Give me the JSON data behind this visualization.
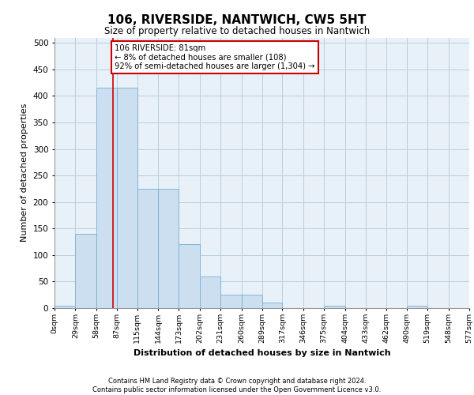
{
  "title": "106, RIVERSIDE, NANTWICH, CW5 5HT",
  "subtitle": "Size of property relative to detached houses in Nantwich",
  "xlabel": "Distribution of detached houses by size in Nantwich",
  "ylabel": "Number of detached properties",
  "footer_line1": "Contains HM Land Registry data © Crown copyright and database right 2024.",
  "footer_line2": "Contains public sector information licensed under the Open Government Licence v3.0.",
  "bar_color": "#ccdff0",
  "bar_edge_color": "#7bafd4",
  "bg_color": "#e8f0f8",
  "grid_color": "#b8cfe0",
  "annotation_text": "106 RIVERSIDE: 81sqm\n← 8% of detached houses are smaller (108)\n92% of semi-detached houses are larger (1,304) →",
  "annotation_box_color": "#ffffff",
  "annotation_edge_color": "#cc0000",
  "vline_color": "#cc0000",
  "vline_x": 81,
  "bin_edges": [
    0,
    29,
    58,
    87,
    115,
    144,
    173,
    202,
    231,
    260,
    289,
    317,
    346,
    375,
    404,
    433,
    462,
    490,
    519,
    548,
    577
  ],
  "bin_labels": [
    "0sqm",
    "29sqm",
    "58sqm",
    "87sqm",
    "115sqm",
    "144sqm",
    "173sqm",
    "202sqm",
    "231sqm",
    "260sqm",
    "289sqm",
    "317sqm",
    "346sqm",
    "375sqm",
    "404sqm",
    "433sqm",
    "462sqm",
    "490sqm",
    "519sqm",
    "548sqm",
    "577sqm"
  ],
  "bar_heights": [
    5,
    140,
    415,
    415,
    225,
    225,
    120,
    60,
    25,
    25,
    10,
    0,
    0,
    5,
    0,
    0,
    0,
    5,
    0,
    0
  ],
  "ylim": [
    0,
    510
  ],
  "yticks": [
    0,
    50,
    100,
    150,
    200,
    250,
    300,
    350,
    400,
    450,
    500
  ]
}
